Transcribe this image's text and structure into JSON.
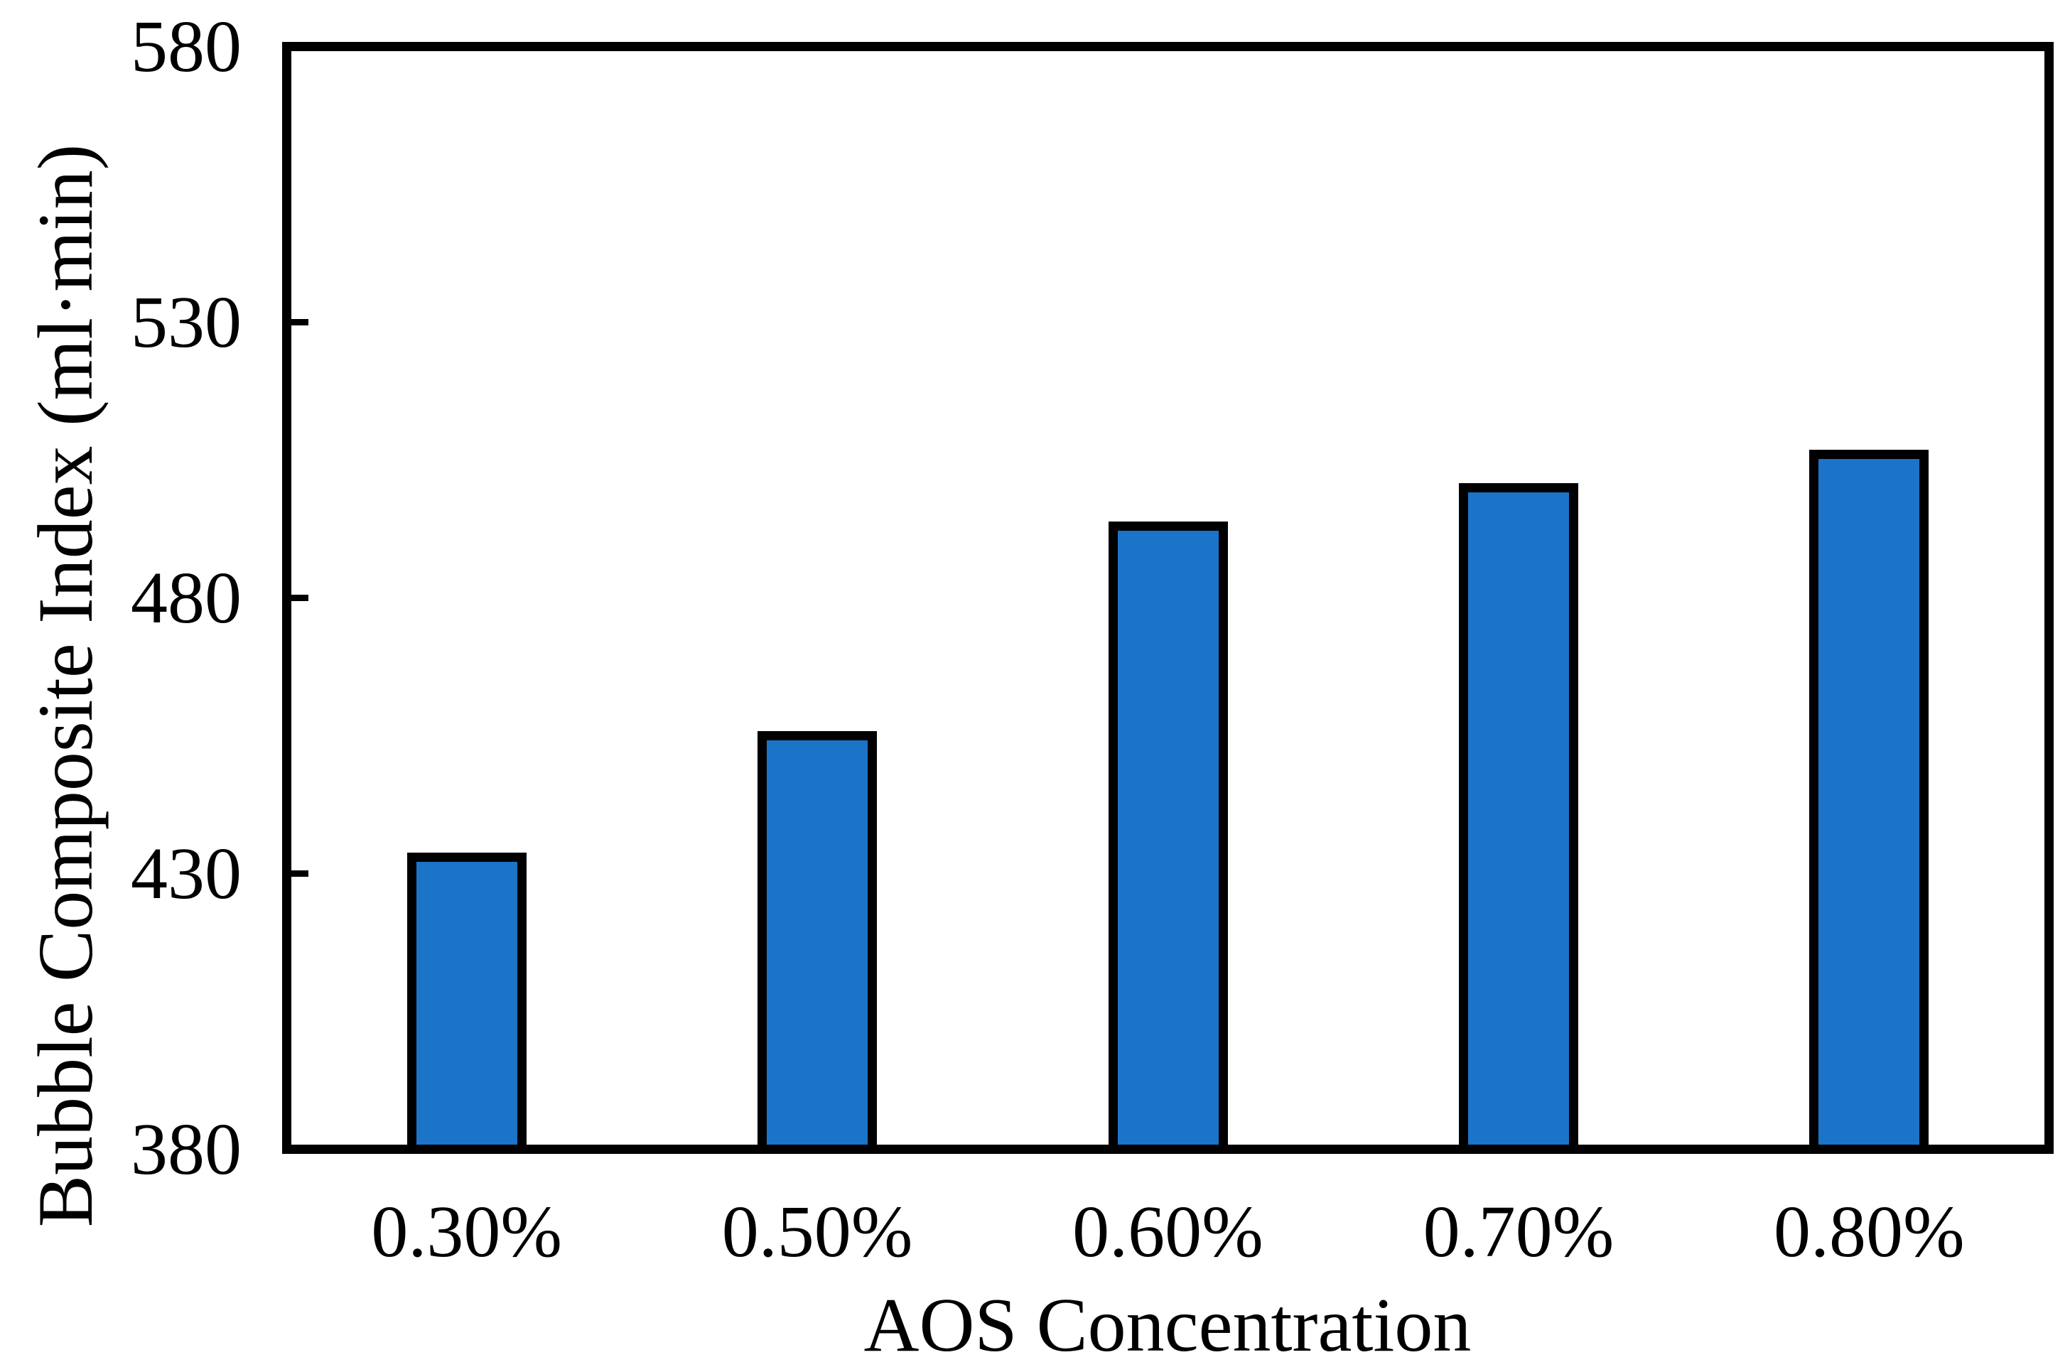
{
  "chart_data": {
    "type": "bar",
    "title": "",
    "categories": [
      "0.30%",
      "0.50%",
      "0.60%",
      "0.70%",
      "0.80%"
    ],
    "values": [
      433,
      455,
      493,
      500,
      506
    ],
    "xlabel": "AOS Concentration",
    "ylabel": "Bubble Composite Index (ml·min)",
    "ylim": [
      380,
      580
    ],
    "yticks": [
      380,
      430,
      480,
      530,
      580
    ],
    "ytick_interval": 50,
    "grid": false,
    "legend": null,
    "bar_color": "#1B74C8",
    "bar_border_color": "#000000",
    "axis_color": "#000000",
    "background_color": "#FFFFFF"
  }
}
